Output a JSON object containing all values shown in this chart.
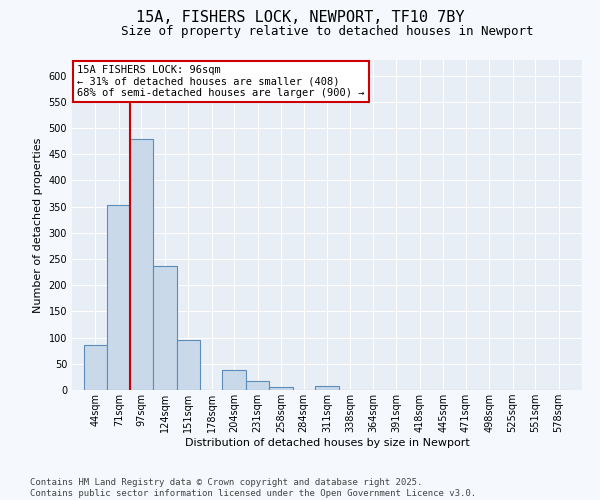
{
  "title": "15A, FISHERS LOCK, NEWPORT, TF10 7BY",
  "subtitle": "Size of property relative to detached houses in Newport",
  "xlabel": "Distribution of detached houses by size in Newport",
  "ylabel": "Number of detached properties",
  "bins": [
    44,
    71,
    97,
    124,
    151,
    178,
    204,
    231,
    258,
    284,
    311,
    338,
    364,
    391,
    418,
    445,
    471,
    498,
    525,
    551,
    578
  ],
  "counts": [
    85,
    353,
    480,
    237,
    95,
    0,
    38,
    17,
    5,
    0,
    8,
    0,
    0,
    0,
    0,
    0,
    0,
    0,
    0,
    0,
    0
  ],
  "bar_color": "#c9d9ea",
  "bar_edge_color": "#5b8db8",
  "red_line_x": 97,
  "annotation_text": "15A FISHERS LOCK: 96sqm\n← 31% of detached houses are smaller (408)\n68% of semi-detached houses are larger (900) →",
  "annotation_box_color": "#ffffff",
  "annotation_box_edge": "#cc0000",
  "ylim": [
    0,
    630
  ],
  "yticks": [
    0,
    50,
    100,
    150,
    200,
    250,
    300,
    350,
    400,
    450,
    500,
    550,
    600
  ],
  "footer_line1": "Contains HM Land Registry data © Crown copyright and database right 2025.",
  "footer_line2": "Contains public sector information licensed under the Open Government Licence v3.0.",
  "plot_bg_color": "#e8eef5",
  "fig_bg_color": "#f5f8fc",
  "grid_color": "#ffffff",
  "title_fontsize": 11,
  "subtitle_fontsize": 9,
  "label_fontsize": 8,
  "tick_fontsize": 7,
  "annotation_fontsize": 7.5,
  "footer_fontsize": 6.5
}
